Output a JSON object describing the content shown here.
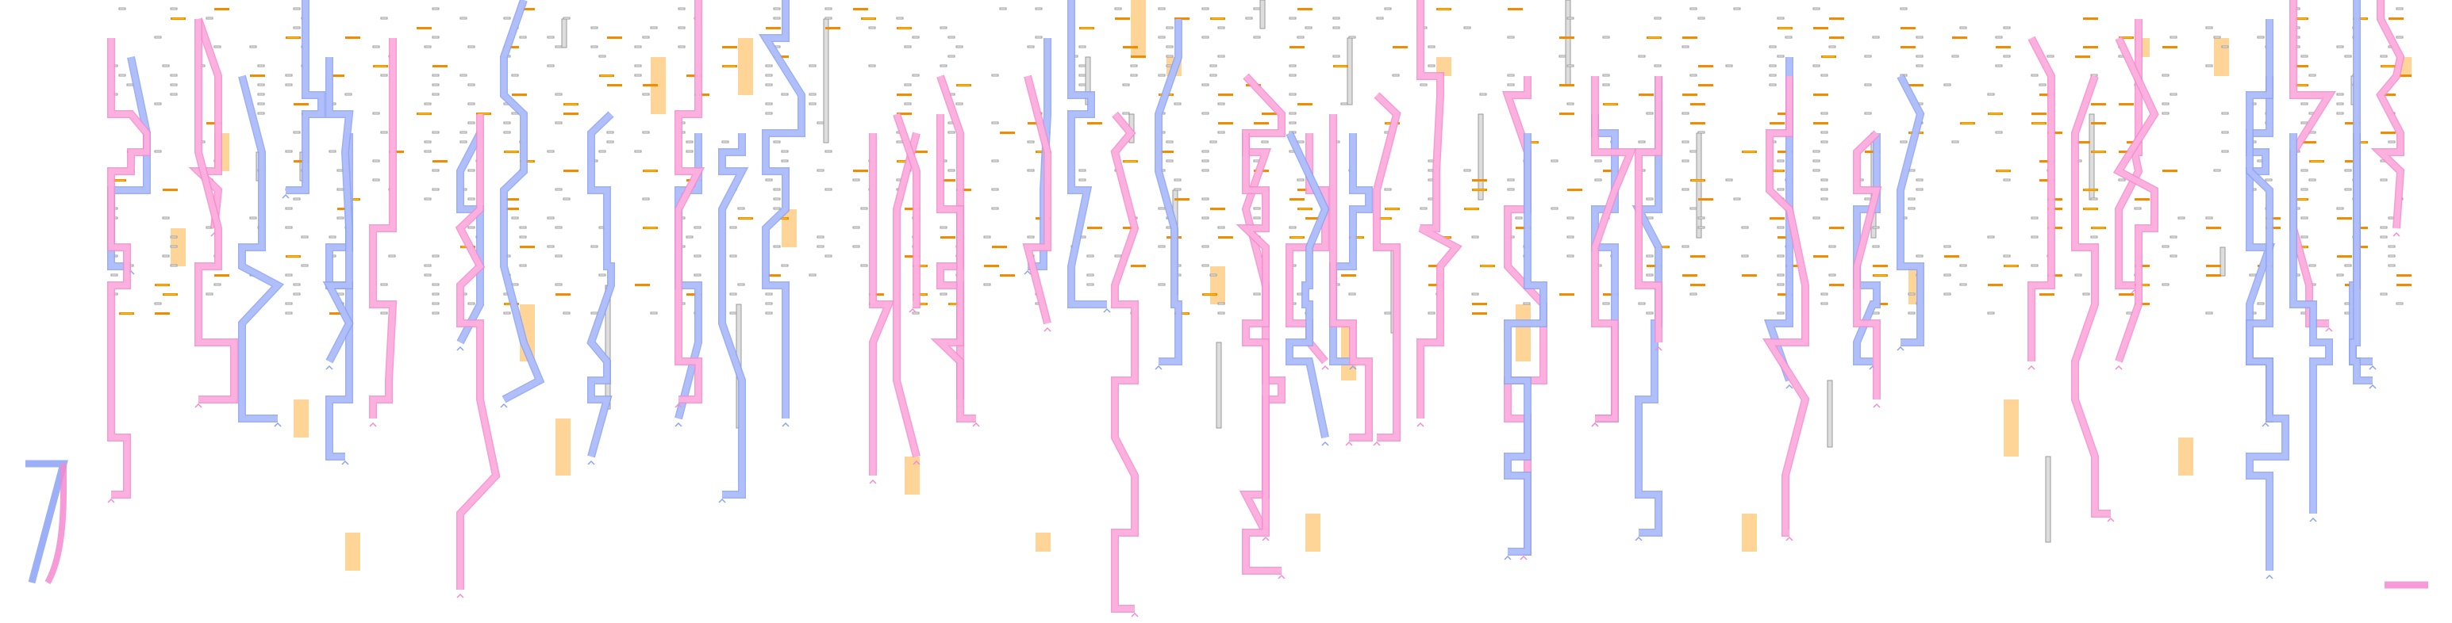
{
  "diagram": {
    "background": "#ffffff",
    "colors": {
      "blue_track_fill": "#b3c1fb",
      "blue_track_edge": "#8aa2f5",
      "pink_track_fill": "#fdb3df",
      "pink_track_edge": "#f58ad0",
      "orange_marker": "#f08c00",
      "orange_marker_core": "#ffc400",
      "orange_region": "#fed596",
      "grey_marker": "#9a9a9a",
      "grey_bar": "#dddddd"
    },
    "element_types": [
      "blue-track",
      "pink-track",
      "grey-tick",
      "orange-tick",
      "orange-region",
      "grey-bar",
      "track-end-caret"
    ]
  }
}
